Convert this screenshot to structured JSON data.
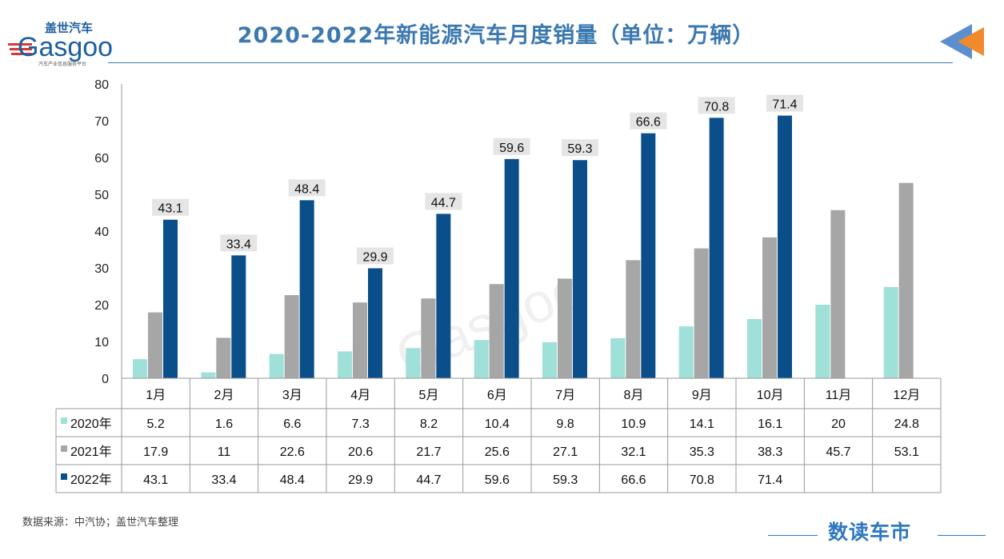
{
  "title": "2020-2022年新能源汽车月度销量（单位：万辆）",
  "logo": {
    "cn": "盖世汽车",
    "en": "Gasgoo",
    "tagline": "汽车产业信息服务平台"
  },
  "source": "数据来源：中汽协；盖世汽车整理",
  "brand": "数读车市",
  "colors": {
    "2020": "#9fe0d8",
    "2021": "#a6a6a6",
    "2022": "#0a4f8a",
    "title": "#3b78b0",
    "arrow_blue": "#5b8fd0",
    "arrow_orange": "#f08a2c"
  },
  "chart_data": {
    "type": "bar",
    "categories": [
      "1月",
      "2月",
      "3月",
      "4月",
      "5月",
      "6月",
      "7月",
      "8月",
      "9月",
      "10月",
      "11月",
      "12月"
    ],
    "series": [
      {
        "name": "2020年",
        "values": [
          5.2,
          1.6,
          6.6,
          7.3,
          8.2,
          10.4,
          9.8,
          10.9,
          14.1,
          16.1,
          20,
          24.8
        ]
      },
      {
        "name": "2021年",
        "values": [
          17.9,
          11,
          22.6,
          20.6,
          21.7,
          25.6,
          27.1,
          32.1,
          35.3,
          38.3,
          45.7,
          53.1
        ]
      },
      {
        "name": "2022年",
        "values": [
          43.1,
          33.4,
          48.4,
          29.9,
          44.7,
          59.6,
          59.3,
          66.6,
          70.8,
          71.4,
          null,
          null
        ]
      }
    ],
    "data_labels_series": "2022年",
    "ylim": [
      0,
      80
    ],
    "yticks": [
      0,
      10,
      20,
      30,
      40,
      50,
      60,
      70,
      80
    ],
    "grid": false,
    "legend": "data-table"
  }
}
